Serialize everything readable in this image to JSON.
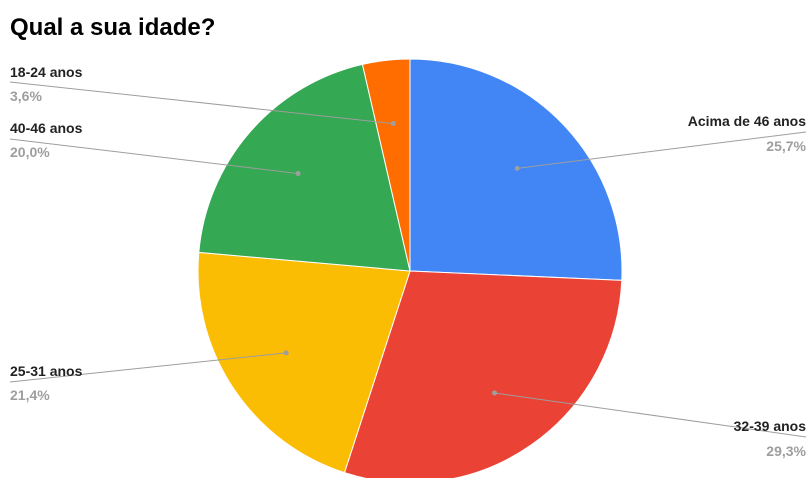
{
  "chart_data": {
    "type": "pie",
    "title": "Qual a sua idade?",
    "slices": [
      {
        "label": "Acima de 46 anos",
        "value": 25.7,
        "value_label": "25,7%",
        "color": "#4285F4"
      },
      {
        "label": "32-39 anos",
        "value": 29.3,
        "value_label": "29,3%",
        "color": "#EA4335"
      },
      {
        "label": "25-31 anos",
        "value": 21.4,
        "value_label": "21,4%",
        "color": "#FBBC04"
      },
      {
        "label": "40-46 anos",
        "value": 20.0,
        "value_label": "20,0%",
        "color": "#34A853"
      },
      {
        "label": "18-24 anos",
        "value": 3.6,
        "value_label": "3,6%",
        "color": "#FF6D01"
      }
    ],
    "start_angle_deg": 0,
    "direction": "clockwise",
    "legend": "none",
    "label_line_color": "#9e9e9e"
  }
}
